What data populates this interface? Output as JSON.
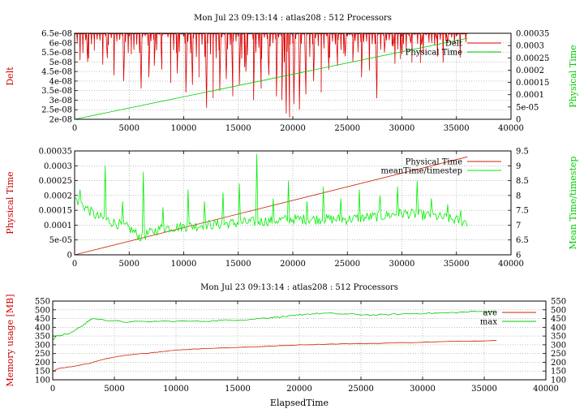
{
  "chart_data": [
    {
      "type": "line",
      "title": "Mon Jul 23 09:13:14 : atlas208 : 512 Processors",
      "xlabel": "",
      "ylabel": "Delt",
      "y2label": "Physical Time",
      "ylabel_color": "#cc0000",
      "y2label_color": "#00cc00",
      "xlim": [
        0,
        40000
      ],
      "ylim": [
        2e-08,
        6.5e-08
      ],
      "y2lim": [
        0,
        0.00035
      ],
      "x_ticks": [
        0,
        5000,
        10000,
        15000,
        20000,
        25000,
        30000,
        35000,
        40000
      ],
      "y_ticks": [
        "6.5e-08",
        "6e-08",
        "5.5e-08",
        "5e-08",
        "4.5e-08",
        "4e-08",
        "3.5e-08",
        "3e-08",
        "2.5e-08",
        "2e-08"
      ],
      "y2_ticks": [
        "0.00035",
        "0.0003",
        "0.00025",
        "0.0002",
        "0.00015",
        "0.0001",
        "5e-05",
        "0"
      ],
      "grid": true,
      "legend": "top-right",
      "series": [
        {
          "name": "Delt",
          "axis": "y1",
          "color": "#dd0000",
          "baseline": 6.47e-08,
          "x_end": 36000,
          "dips": [
            [
              1200,
              5e-08
            ],
            [
              1800,
              5.6e-08
            ],
            [
              3000,
              5.2e-08
            ],
            [
              3600,
              4.3e-08
            ],
            [
              4500,
              4e-08
            ],
            [
              5200,
              5.4e-08
            ],
            [
              6100,
              3.6e-08
            ],
            [
              6800,
              4.2e-08
            ],
            [
              7300,
              4.8e-08
            ],
            [
              8000,
              4.6e-08
            ],
            [
              8800,
              3.9e-08
            ],
            [
              9400,
              4.4e-08
            ],
            [
              10200,
              3.4e-08
            ],
            [
              10800,
              3.8e-08
            ],
            [
              11400,
              4.2e-08
            ],
            [
              12100,
              2.6e-08
            ],
            [
              12700,
              3.1e-08
            ],
            [
              13300,
              3.5e-08
            ],
            [
              13900,
              4.1e-08
            ],
            [
              14500,
              3.2e-08
            ],
            [
              15100,
              3.8e-08
            ],
            [
              15700,
              4.5e-08
            ],
            [
              16400,
              3e-08
            ],
            [
              17100,
              3.6e-08
            ],
            [
              17800,
              4.3e-08
            ],
            [
              18500,
              3.2e-08
            ],
            [
              19000,
              3e-08
            ],
            [
              19400,
              2.3e-08
            ],
            [
              19700,
              2.1e-08
            ],
            [
              20100,
              2.8e-08
            ],
            [
              20600,
              2.5e-08
            ],
            [
              21200,
              3.3e-08
            ],
            [
              21900,
              4e-08
            ],
            [
              22600,
              3.4e-08
            ],
            [
              23300,
              4.6e-08
            ],
            [
              24100,
              4.8e-08
            ],
            [
              24800,
              5.3e-08
            ],
            [
              25500,
              5e-08
            ],
            [
              26300,
              4.2e-08
            ],
            [
              27000,
              5.2e-08
            ],
            [
              27700,
              3.1e-08
            ],
            [
              28400,
              5.5e-08
            ],
            [
              29200,
              5.8e-08
            ],
            [
              30000,
              5.4e-08
            ],
            [
              30800,
              6e-08
            ],
            [
              31800,
              5.9e-08
            ],
            [
              33200,
              6.2e-08
            ],
            [
              34200,
              6e-08
            ]
          ]
        },
        {
          "name": "Physical Time",
          "axis": "y2",
          "color": "#00cc00",
          "points": [
            [
              0,
              0
            ],
            [
              36000,
              0.00033
            ]
          ]
        }
      ]
    },
    {
      "type": "line",
      "title": "",
      "xlabel": "",
      "ylabel": "Physical Time",
      "y2label": "Mean Time/timestep",
      "ylabel_color": "#cc0000",
      "y2label_color": "#00cc00",
      "xlim": [
        0,
        40000
      ],
      "ylim": [
        0,
        0.00035
      ],
      "y2lim": [
        6,
        9.5
      ],
      "x_ticks": [
        0,
        5000,
        10000,
        15000,
        20000,
        25000,
        30000,
        35000,
        40000
      ],
      "y_ticks": [
        "0.00035",
        "0.0003",
        "0.00025",
        "0.0002",
        "0.00015",
        "0.0001",
        "5e-05",
        "0"
      ],
      "y2_ticks": [
        "9.5",
        "9",
        "8.5",
        "8",
        "7.5",
        "7",
        "6.5",
        "6"
      ],
      "grid": true,
      "legend": "top-right",
      "series": [
        {
          "name": "Physical Time",
          "axis": "y1",
          "color": "#cc2200",
          "points": [
            [
              0,
              0
            ],
            [
              36000,
              0.00033
            ]
          ]
        },
        {
          "name": "meanTime/timestep",
          "axis": "y2",
          "color": "#00ee00",
          "baseline": [
            [
              0,
              7.9
            ],
            [
              2000,
              7.3
            ],
            [
              5000,
              6.9
            ],
            [
              6000,
              6.6
            ],
            [
              8000,
              6.9
            ],
            [
              12000,
              7.0
            ],
            [
              16000,
              7.1
            ],
            [
              20000,
              7.2
            ],
            [
              25000,
              7.2
            ],
            [
              28000,
              7.3
            ],
            [
              30000,
              7.4
            ],
            [
              33000,
              7.3
            ],
            [
              36000,
              7.1
            ]
          ],
          "spikes": [
            [
              500,
              8.2
            ],
            [
              2800,
              9.0
            ],
            [
              4400,
              7.8
            ],
            [
              6300,
              8.8
            ],
            [
              8100,
              7.6
            ],
            [
              10400,
              8.2
            ],
            [
              11900,
              7.8
            ],
            [
              13600,
              8.1
            ],
            [
              15100,
              8.4
            ],
            [
              16700,
              9.4
            ],
            [
              18200,
              7.9
            ],
            [
              19600,
              8.5
            ],
            [
              21300,
              7.8
            ],
            [
              22800,
              8.3
            ],
            [
              24400,
              7.9
            ],
            [
              26100,
              8.2
            ],
            [
              28000,
              8.0
            ],
            [
              29600,
              8.3
            ],
            [
              31400,
              8.5
            ],
            [
              32700,
              7.9
            ],
            [
              34200,
              7.7
            ],
            [
              35400,
              7.5
            ]
          ]
        }
      ]
    },
    {
      "type": "line",
      "title": "Mon Jul 23 09:13:14 : atlas208 : 512 Processors",
      "xlabel": "ElapsedTime",
      "ylabel": "Memory usage [MB]",
      "ylabel_color": "#cc0000",
      "xlim": [
        0,
        40000
      ],
      "ylim": [
        100,
        550
      ],
      "y2lim": [
        100,
        550
      ],
      "x_ticks": [
        0,
        5000,
        10000,
        15000,
        20000,
        25000,
        30000,
        35000,
        40000
      ],
      "y_ticks": [
        "550",
        "500",
        "450",
        "400",
        "350",
        "300",
        "250",
        "200",
        "150",
        "100"
      ],
      "y2_ticks": [
        "550",
        "500",
        "450",
        "400",
        "350",
        "300",
        "250",
        "200",
        "150",
        "100"
      ],
      "grid": true,
      "legend": "top-right",
      "series": [
        {
          "name": "ave",
          "axis": "y1",
          "color": "#cc2200",
          "points": [
            [
              0,
              150
            ],
            [
              500,
              165
            ],
            [
              1000,
              170
            ],
            [
              2000,
              180
            ],
            [
              3000,
              195
            ],
            [
              4000,
              215
            ],
            [
              5000,
              230
            ],
            [
              6000,
              240
            ],
            [
              8000,
              255
            ],
            [
              10000,
              270
            ],
            [
              12000,
              278
            ],
            [
              15000,
              285
            ],
            [
              18000,
              293
            ],
            [
              20000,
              300
            ],
            [
              23000,
              305
            ],
            [
              26000,
              308
            ],
            [
              30000,
              315
            ],
            [
              33000,
              320
            ],
            [
              36000,
              325
            ]
          ]
        },
        {
          "name": "max",
          "axis": "y1",
          "color": "#00cc00",
          "points": [
            [
              0,
              330
            ],
            [
              300,
              350
            ],
            [
              700,
              355
            ],
            [
              1500,
              370
            ],
            [
              2200,
              400
            ],
            [
              2800,
              430
            ],
            [
              3200,
              450
            ],
            [
              4500,
              440
            ],
            [
              6000,
              430
            ],
            [
              9000,
              435
            ],
            [
              12000,
              435
            ],
            [
              14000,
              440
            ],
            [
              16000,
              445
            ],
            [
              17500,
              455
            ],
            [
              18500,
              460
            ],
            [
              19500,
              465
            ],
            [
              20500,
              475
            ],
            [
              22000,
              480
            ],
            [
              24000,
              475
            ],
            [
              26000,
              470
            ],
            [
              28000,
              475
            ],
            [
              30000,
              480
            ],
            [
              32000,
              482
            ],
            [
              34000,
              490
            ],
            [
              36000,
              490
            ]
          ]
        }
      ]
    }
  ]
}
